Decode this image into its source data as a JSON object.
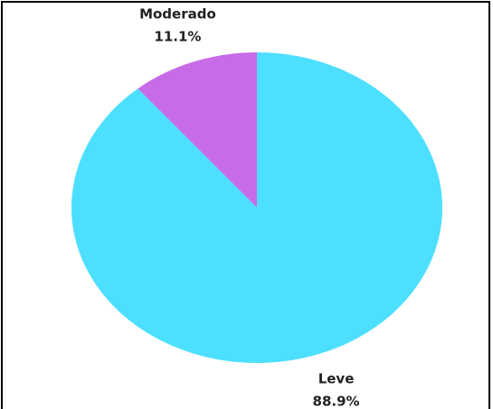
{
  "chart_data": {
    "type": "pie",
    "categories": [
      "Moderado",
      "Leve"
    ],
    "values": [
      11.1,
      88.9
    ],
    "value_labels": [
      "11.1%",
      "88.9%"
    ],
    "colors": [
      "#c86be6",
      "#4ddfff"
    ],
    "startangle": 90,
    "counterclock": true
  }
}
